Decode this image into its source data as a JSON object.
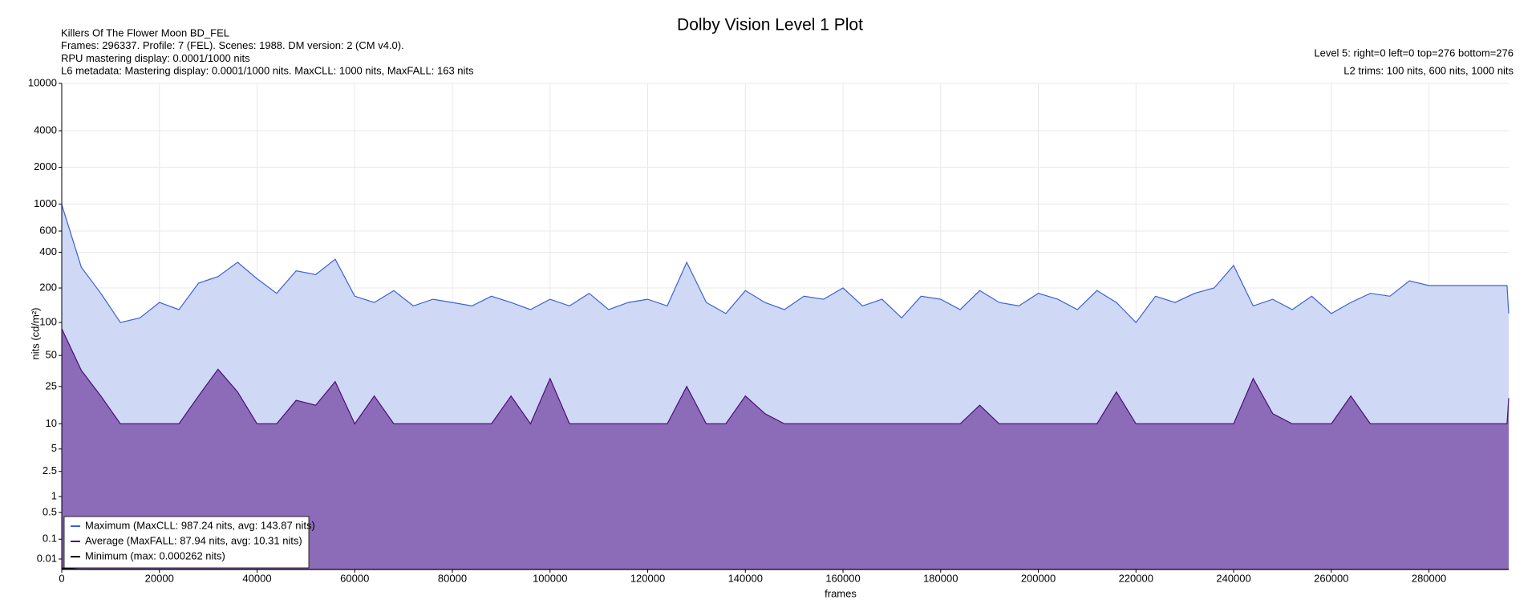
{
  "chart_data": {
    "type": "line",
    "title": "Dolby Vision Level 1 Plot",
    "info_left": [
      "Killers Of The Flower Moon BD_FEL",
      "Frames: 296337. Profile: 7 (FEL). Scenes: 1988. DM version: 2 (CM v4.0).",
      "RPU mastering display: 0.0001/1000 nits",
      "L6 metadata: Mastering display: 0.0001/1000 nits. MaxCLL: 1000 nits, MaxFALL: 163 nits"
    ],
    "info_right": [
      "Level 5: right=0 left=0 top=276 bottom=276",
      "L2 trims: 100 nits, 600 nits, 1000 nits"
    ],
    "x_label": "frames",
    "y_label": "nits (cd/m²)",
    "yscale": "pq",
    "grid": true,
    "legend": "lower left",
    "xlim": [
      0,
      296337
    ],
    "xticks": [
      0,
      20000,
      40000,
      60000,
      80000,
      100000,
      120000,
      140000,
      160000,
      180000,
      200000,
      220000,
      240000,
      260000,
      280000
    ],
    "ylim": [
      0,
      10000
    ],
    "yticks": [
      0.01,
      0.1,
      0.5,
      1,
      2.5,
      5,
      10,
      25,
      50,
      100,
      200,
      400,
      600,
      1000,
      2000,
      4000,
      10000
    ],
    "x": [
      0,
      4000,
      8000,
      12000,
      16000,
      20000,
      24000,
      28000,
      32000,
      36000,
      40000,
      44000,
      48000,
      52000,
      56000,
      60000,
      64000,
      68000,
      72000,
      76000,
      80000,
      84000,
      88000,
      92000,
      96000,
      100000,
      104000,
      108000,
      112000,
      116000,
      120000,
      124000,
      128000,
      132000,
      136000,
      140000,
      144000,
      148000,
      152000,
      156000,
      160000,
      164000,
      168000,
      172000,
      176000,
      180000,
      184000,
      188000,
      192000,
      196000,
      200000,
      204000,
      208000,
      212000,
      216000,
      220000,
      224000,
      228000,
      232000,
      236000,
      240000,
      244000,
      248000,
      252000,
      256000,
      260000,
      264000,
      268000,
      272000,
      276000,
      280000,
      284000,
      288000,
      292000,
      296000,
      296337
    ],
    "series": [
      {
        "name": "Maximum (MaxCLL: 987.24 nits, avg: 143.87 nits)",
        "color": "#3b62d6",
        "fill": "#cfd9f5",
        "values": [
          987.24,
          300,
          180,
          100,
          110,
          150,
          130,
          220,
          250,
          330,
          240,
          180,
          280,
          260,
          350,
          170,
          150,
          190,
          140,
          160,
          150,
          140,
          170,
          150,
          130,
          160,
          140,
          180,
          130,
          150,
          160,
          140,
          330,
          150,
          120,
          190,
          150,
          130,
          170,
          160,
          200,
          140,
          160,
          110,
          170,
          160,
          130,
          190,
          150,
          140,
          180,
          160,
          130,
          190,
          150,
          100,
          170,
          150,
          180,
          200,
          310,
          140,
          160,
          130,
          170,
          120,
          150,
          180,
          170,
          230,
          210,
          210,
          210,
          210,
          210,
          120
        ]
      },
      {
        "name": "Average (MaxFALL: 87.94 nits, avg: 10.31 nits)",
        "color": "#4b0f7a",
        "fill": "#8c6bb8",
        "values": [
          87.94,
          36,
          20,
          10,
          10,
          10,
          10,
          20,
          37,
          22,
          10,
          10,
          18,
          16,
          28,
          10,
          20,
          10,
          10,
          10,
          10,
          10,
          10,
          20,
          10,
          30,
          10,
          10,
          10,
          10,
          10,
          10,
          25,
          10,
          10,
          20,
          13,
          10,
          10,
          10,
          10,
          10,
          10,
          10,
          10,
          10,
          10,
          16,
          10,
          10,
          10,
          10,
          10,
          10,
          22,
          10,
          10,
          10,
          10,
          10,
          10,
          30,
          13,
          10,
          10,
          10,
          20,
          10,
          10,
          10,
          10,
          10,
          10,
          10,
          10,
          19
        ]
      },
      {
        "name": "Minimum (max: 0.000262 nits)",
        "color": "#000000",
        "fill": "#000000",
        "values": [
          0.000262,
          0,
          0,
          0,
          0,
          0,
          0,
          0,
          0,
          0,
          0,
          0,
          0,
          0,
          0,
          0,
          0,
          0,
          0,
          0,
          0,
          0,
          0,
          0,
          0,
          0,
          0,
          0,
          0,
          0,
          0,
          0,
          0,
          0,
          0,
          0,
          0,
          0,
          0,
          0,
          0,
          0,
          0,
          0,
          0,
          0,
          0,
          0,
          0,
          0,
          0,
          0,
          0,
          0,
          0,
          0,
          0,
          0,
          0,
          0,
          0,
          0,
          0,
          0,
          0,
          0,
          0,
          0,
          0,
          0,
          0,
          0,
          0,
          0,
          0,
          0
        ]
      }
    ]
  }
}
